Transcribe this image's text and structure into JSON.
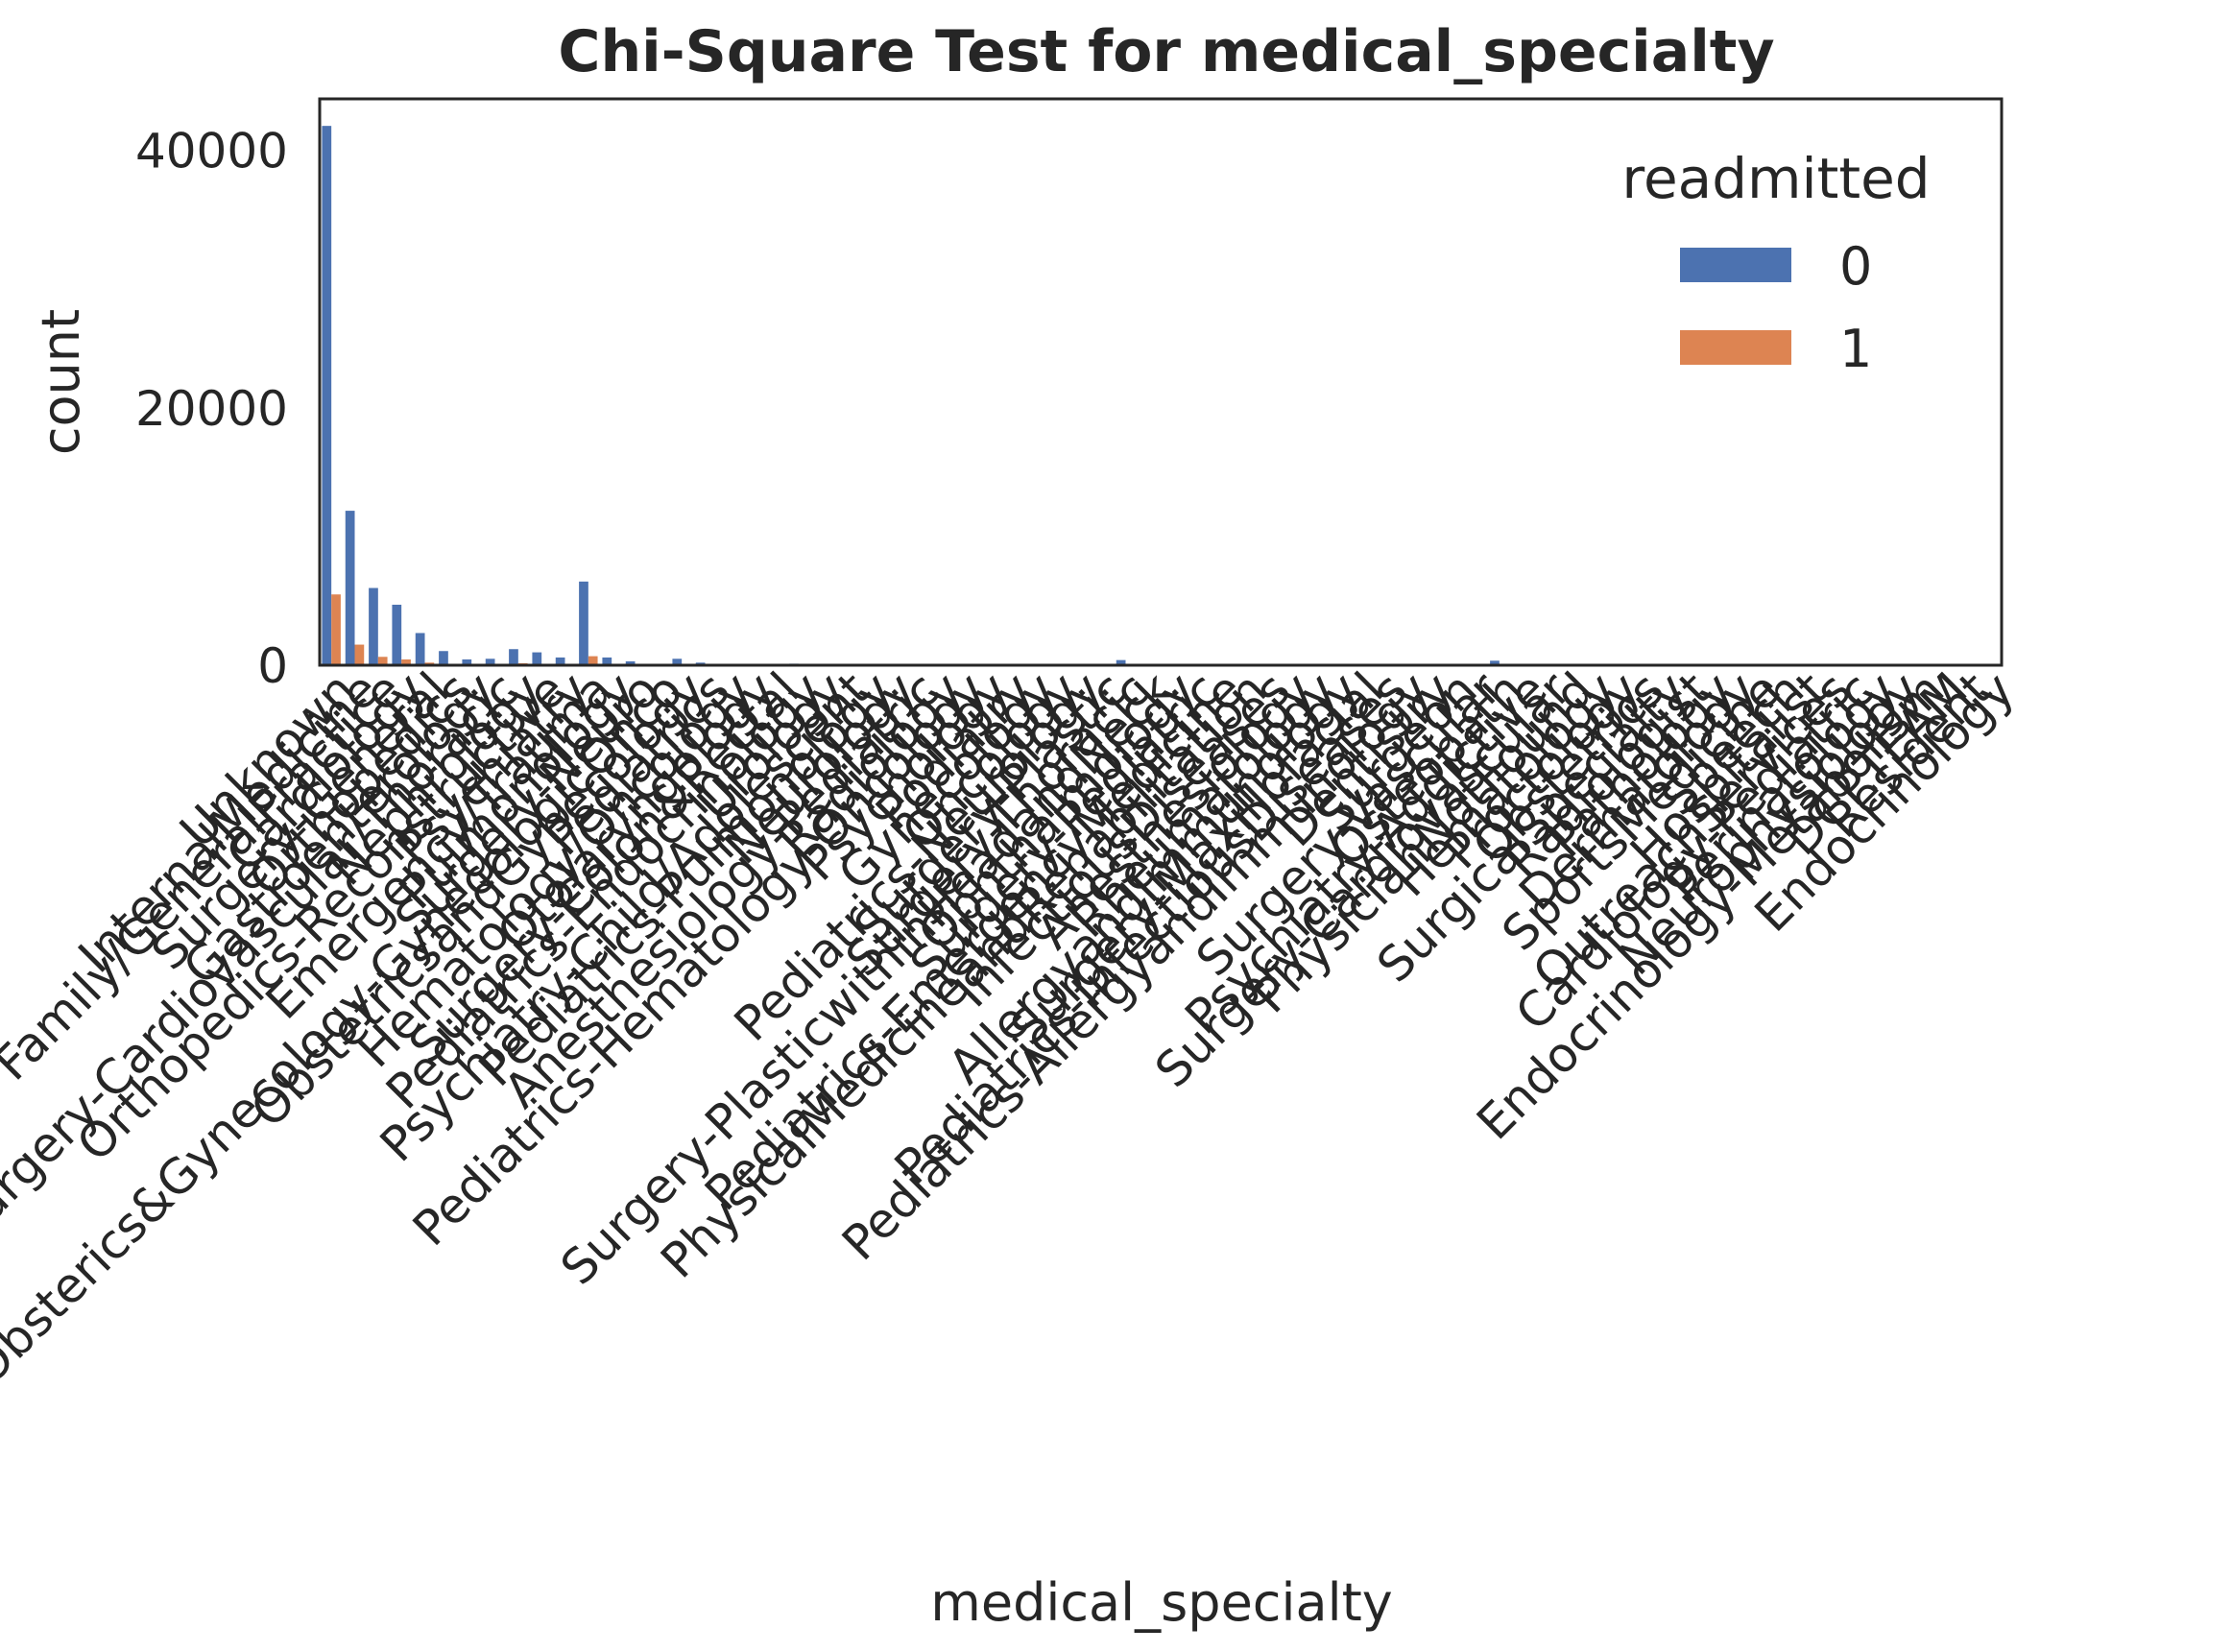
{
  "chart_data": {
    "type": "bar",
    "title": "Chi-Square Test for medical_specialty",
    "xlabel": "medical_specialty",
    "ylabel": "count",
    "ylim": [
      0,
      44000
    ],
    "yticks": [
      0,
      20000,
      40000
    ],
    "grid": false,
    "legend": {
      "title": "readmitted",
      "placement": "top-right"
    },
    "categories": [
      "Unknown",
      "InternalMedicine",
      "Family/GeneralPractice",
      "Cardiology",
      "Surgery-General",
      "Orthopedics",
      "Gastroenterology",
      "Surgery-Cardiovascular/Thoracic",
      "Nephrology",
      "Orthopedics-Reconstructive",
      "Psychiatry",
      "Emergency/Trauma",
      "Pulmonology",
      "Surgery-Neuro",
      "Obsterics&Gynecology-GynecologicOnco",
      "ObstetricsandGynecology",
      "Pediatrics",
      "Hematology/Oncology",
      "Otolaryngology",
      "Surgery-Colon&Rectal",
      "Pediatrics-Endocrinology",
      "Urology",
      "Psychiatry-Child/Adolescent",
      "Pediatrics-Pulmonology",
      "Neurology",
      "Anesthesiology-Pediatric",
      "Radiology",
      "Pediatrics-Hematology-Oncology",
      "Psychology",
      "Podiatry",
      "Gynecology",
      "Oncology",
      "Pediatrics-Neurology",
      "Surgery-Plastic",
      "Surgery-Thoracic",
      "Surgery-PlasticwithinHeadandNeck",
      "Ophthalmology",
      "Surgery-Pediatric",
      "Pediatrics-EmergencyMedicine",
      "PhysicalMedicineandRehabilitation",
      "InfectiousDiseases",
      "Anesthesiology",
      "Rheumatology",
      "AllergyandImmunology",
      "Surgery-Maxillofacial",
      "Pediatrics-InfectiousDiseases",
      "Pediatrics-AllergyandImmunology",
      "Dentistry",
      "Surgeon",
      "Surgery-Vascular",
      "Osteopath",
      "Psychiatry-Addictive",
      "Surgery-Cardiovascular",
      "PhysicianNotFound",
      "Hematology",
      "Proctology",
      "Obstetrics",
      "SurgicalSpecialty",
      "Radiologist",
      "Pathology",
      "Dermatology",
      "SportsMedicine",
      "Speech",
      "Hospitalist",
      "OutreachServices",
      "Cardiology-Pediatric",
      "Perinatology",
      "Neurophysiology",
      "Endocrinology-Metabolism",
      "DCPTEAM",
      "Resident",
      "Endocrinology"
    ],
    "series": [
      {
        "name": "0",
        "color": "#4c72b0",
        "values": [
          41900,
          12000,
          6000,
          4700,
          2500,
          1100,
          450,
          500,
          1250,
          1000,
          600,
          6500,
          600,
          300,
          30,
          500,
          200,
          100,
          100,
          100,
          120,
          50,
          10,
          20,
          40,
          10,
          10,
          30,
          20,
          20,
          30,
          20,
          10,
          40,
          400,
          20,
          10,
          20,
          10,
          10,
          10,
          10,
          10,
          10,
          10,
          10,
          10,
          10,
          10,
          10,
          350,
          10,
          10,
          10,
          10,
          10,
          10,
          10,
          10,
          10,
          10,
          10,
          10,
          10,
          10,
          10,
          10,
          10,
          10,
          10,
          10,
          10
        ]
      },
      {
        "name": "1",
        "color": "#dd8452",
        "values": [
          5500,
          1600,
          650,
          450,
          200,
          100,
          40,
          50,
          150,
          100,
          60,
          700,
          60,
          30,
          5,
          50,
          20,
          10,
          10,
          10,
          10,
          5,
          2,
          2,
          4,
          1,
          1,
          3,
          2,
          2,
          3,
          2,
          1,
          4,
          40,
          2,
          1,
          2,
          1,
          1,
          1,
          1,
          1,
          1,
          1,
          1,
          1,
          1,
          1,
          1,
          35,
          1,
          1,
          1,
          1,
          1,
          1,
          1,
          1,
          1,
          1,
          1,
          1,
          1,
          1,
          1,
          1,
          1,
          1,
          1,
          1,
          1
        ]
      }
    ]
  }
}
